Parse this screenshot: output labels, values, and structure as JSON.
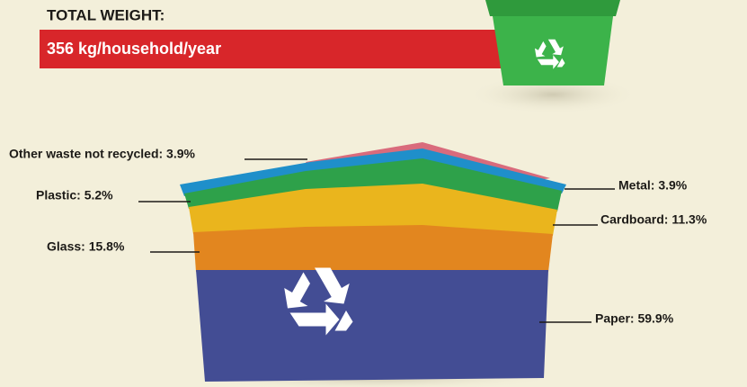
{
  "header": {
    "title": "TOTAL WEIGHT:",
    "value": "356 kg/household/year"
  },
  "labels": {
    "other": "Other waste not recycled: 3.9%",
    "plastic": "Plastic: 5.2%",
    "glass": "Glass: 15.8%",
    "metal": "Metal: 3.9%",
    "cardboard": "Cardboard: 11.3%",
    "paper": "Paper: 59.9%"
  }
}
